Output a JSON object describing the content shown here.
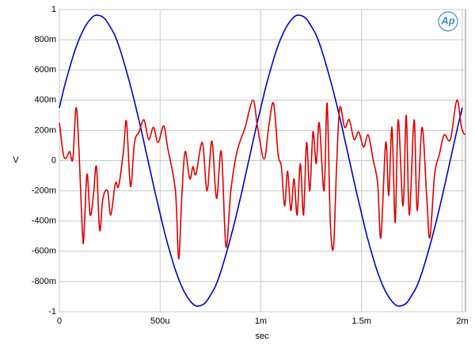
{
  "chart_data": {
    "type": "line",
    "xlabel": "sec",
    "ylabel": "V",
    "logo": "Ap",
    "xlim": [
      0,
      0.002016
    ],
    "ylim": [
      -1,
      1
    ],
    "xticks": [
      0,
      {
        "value": 0.0005,
        "label": "500u"
      },
      {
        "value": 0.001,
        "label": "1m"
      },
      {
        "value": 0.0015,
        "label": "1.5m"
      },
      {
        "value": 0.002,
        "label": "2m"
      }
    ],
    "yticks": [
      -1,
      {
        "value": -0.8,
        "label": "-800m"
      },
      {
        "value": -0.6,
        "label": "-600m"
      },
      {
        "value": -0.4,
        "label": "-400m"
      },
      {
        "value": -0.2,
        "label": "-200m"
      },
      0,
      {
        "value": 0.2,
        "label": "200m"
      },
      {
        "value": 0.4,
        "label": "400m"
      },
      {
        "value": 0.6,
        "label": "600m"
      },
      {
        "value": 0.8,
        "label": "800m"
      },
      1
    ],
    "grid": true,
    "series": [
      {
        "color": "#0000cc",
        "x": [
          0,
          2.5e-05,
          5e-05,
          7.5e-05,
          0.0001,
          0.000125,
          0.00015,
          0.000175,
          0.0002,
          0.000225,
          0.00025,
          0.000275,
          0.0003,
          0.000325,
          0.00035,
          0.000375,
          0.0004,
          0.000425,
          0.00045,
          0.000475,
          0.0005,
          0.000525,
          0.00055,
          0.000575,
          0.0006,
          0.000625,
          0.00065,
          0.000675,
          0.0007,
          0.000725,
          0.00075,
          0.000775,
          0.0008,
          0.000825,
          0.00085,
          0.000875,
          0.0009,
          0.000925,
          0.00095,
          0.000975,
          0.001,
          0.001025,
          0.00105,
          0.001075,
          0.0011,
          0.001125,
          0.00115,
          0.001175,
          0.0012,
          0.001225,
          0.00125,
          0.001275,
          0.0013,
          0.001325,
          0.00135,
          0.001375,
          0.0014,
          0.001425,
          0.00145,
          0.001475,
          0.0015,
          0.001525,
          0.00155,
          0.001575,
          0.0016,
          0.001625,
          0.00165,
          0.001675,
          0.0017,
          0.001725,
          0.00175,
          0.001775,
          0.0018,
          0.001825,
          0.00185,
          0.001875,
          0.0019,
          0.001925,
          0.00195,
          0.001975,
          0.002
        ],
        "values": [
          0.35,
          0.49,
          0.61,
          0.72,
          0.81,
          0.88,
          0.93,
          0.96,
          0.96,
          0.94,
          0.89,
          0.83,
          0.74,
          0.63,
          0.51,
          0.38,
          0.24,
          0.09,
          -0.06,
          -0.21,
          -0.35,
          -0.49,
          -0.61,
          -0.72,
          -0.81,
          -0.88,
          -0.93,
          -0.96,
          -0.96,
          -0.94,
          -0.89,
          -0.83,
          -0.74,
          -0.63,
          -0.51,
          -0.38,
          -0.24,
          -0.09,
          0.06,
          0.21,
          0.35,
          0.49,
          0.61,
          0.72,
          0.81,
          0.88,
          0.93,
          0.96,
          0.96,
          0.94,
          0.89,
          0.83,
          0.74,
          0.63,
          0.51,
          0.38,
          0.24,
          0.09,
          -0.06,
          -0.21,
          -0.35,
          -0.49,
          -0.61,
          -0.72,
          -0.81,
          -0.88,
          -0.93,
          -0.96,
          -0.96,
          -0.94,
          -0.89,
          -0.83,
          -0.74,
          -0.63,
          -0.51,
          -0.38,
          -0.24,
          -0.09,
          0.06,
          0.21,
          0.35
        ]
      },
      {
        "color": "#dd0000",
        "x": [
          0,
          2e-05,
          3.5e-05,
          5.1e-05,
          6.7e-05,
          8.6e-05,
          0.000114,
          0.000122,
          0.000137,
          0.000153,
          0.000169,
          0.000184,
          0.0002,
          0.000216,
          0.000239,
          0.000255,
          0.000278,
          0.000294,
          0.000318,
          0.000333,
          0.000353,
          0.000373,
          0.000396,
          0.00042,
          0.000443,
          0.000467,
          0.00049,
          0.000518,
          0.000537,
          0.000576,
          0.000592,
          0.000608,
          0.000624,
          0.000647,
          0.000663,
          0.000678,
          0.00071,
          0.000733,
          0.000757,
          0.00078,
          0.000804,
          0.000827,
          0.000851,
          0.000882,
          0.000922,
          0.000961,
          0.000984,
          0.001016,
          0.001039,
          0.001063,
          0.001086,
          0.001102,
          0.001118,
          0.001133,
          0.001149,
          0.001165,
          0.00118,
          0.001196,
          0.001212,
          0.001227,
          0.001243,
          0.001259,
          0.001275,
          0.00129,
          0.001314,
          0.001329,
          0.001345,
          0.001361,
          0.001376,
          0.001392,
          0.001416,
          0.001439,
          0.001463,
          0.001486,
          0.00151,
          0.001533,
          0.001557,
          0.00158,
          0.001596,
          0.00162,
          0.001635,
          0.001651,
          0.001667,
          0.001682,
          0.001706,
          0.001722,
          0.001737,
          0.001761,
          0.001776,
          0.0018,
          0.001824,
          0.001839,
          0.001863,
          0.001886,
          0.00191,
          0.001941,
          0.001973,
          0.001996,
          0.002012
        ],
        "values": [
          0.25,
          0.04,
          0.02,
          0.06,
          0.01,
          0.34,
          -0.46,
          -0.49,
          -0.09,
          -0.36,
          -0.23,
          -0.04,
          -0.46,
          -0.25,
          -0.2,
          -0.36,
          -0.15,
          -0.17,
          0.06,
          0.26,
          -0.17,
          0.12,
          0.19,
          0.27,
          0.14,
          0.22,
          0.12,
          0.23,
          0.09,
          -0.2,
          -0.65,
          -0.23,
          0.06,
          -0.12,
          -0.04,
          -0.09,
          0.12,
          -0.2,
          0.13,
          -0.25,
          0.06,
          -0.57,
          -0.2,
          0.06,
          0.22,
          0.4,
          0.22,
          0.01,
          0.22,
          0.38,
          0.04,
          -0.04,
          -0.3,
          -0.07,
          -0.33,
          -0.12,
          -0.36,
          -0.02,
          -0.36,
          0.12,
          -0.2,
          0.19,
          -0.02,
          0.25,
          -0.2,
          0.38,
          -0.41,
          -0.57,
          -0.04,
          0.35,
          0.22,
          0.27,
          0.14,
          0.19,
          0.09,
          0.17,
          0.01,
          -0.15,
          -0.51,
          0.12,
          -0.23,
          0.22,
          -0.41,
          0.27,
          -0.3,
          0.3,
          -0.36,
          0.27,
          -0.33,
          0.22,
          -0.25,
          -0.51,
          -0.09,
          0.04,
          0.17,
          0.14,
          0.4,
          0.22,
          0.17
        ]
      }
    ]
  }
}
